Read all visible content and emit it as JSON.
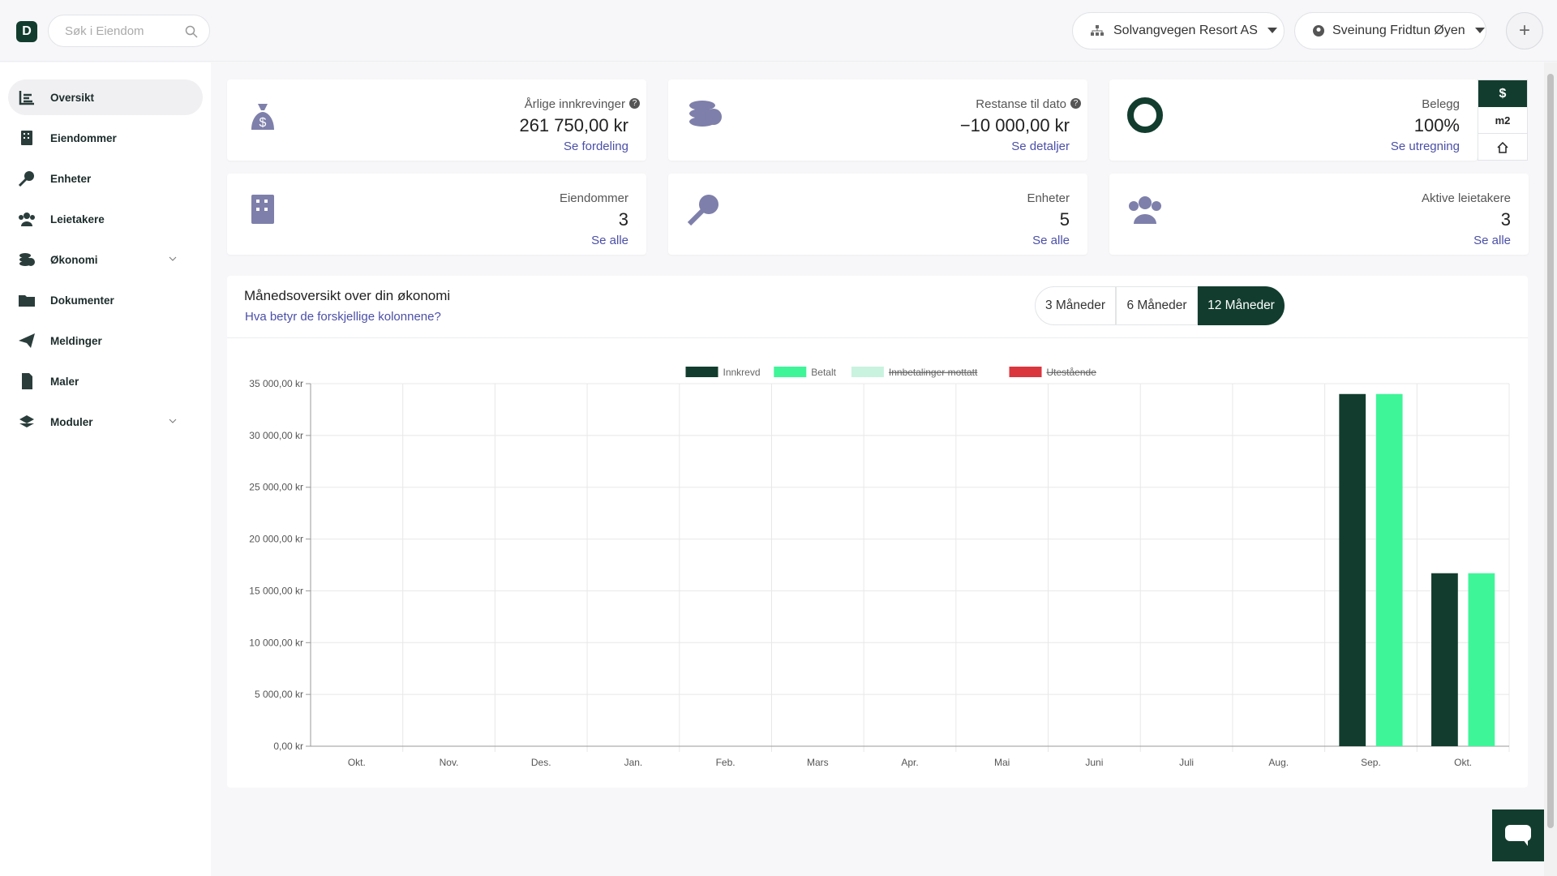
{
  "header": {
    "search_placeholder": "Søk i Eiendom",
    "company": "Solvangvegen Resort AS",
    "user": "Sveinung Fridtun Øyen"
  },
  "nav": [
    "Oversikt",
    "Eiendommer",
    "Enheter",
    "Leietakere",
    "Økonomi",
    "Dokumenter",
    "Meldinger",
    "Maler",
    "Moduler"
  ],
  "cards": [
    {
      "label": "Årlige innkrevinger",
      "value": "261 750,00 kr",
      "link": "Se fordeling"
    },
    {
      "label": "Restanse til dato",
      "value": "−10 000,00 kr",
      "link": "Se detaljer"
    },
    {
      "label": "Belegg",
      "value": "100%",
      "link": "Se utregning"
    },
    {
      "label": "Eiendommer",
      "value": "3",
      "link": "Se alle"
    },
    {
      "label": "Enheter",
      "value": "5",
      "link": "Se alle"
    },
    {
      "label": "Aktive leietakere",
      "value": "3",
      "link": "Se alle"
    }
  ],
  "belegg_toggle": [
    "$",
    "m2"
  ],
  "chart_panel": {
    "title": "Månedsoversikt over din økonomi",
    "help": "Hva betyr de forskjellige kolonnene?",
    "ranges": [
      "3 Måneder",
      "6 Måneder",
      "12 Måneder"
    ],
    "active_range": 2
  },
  "chart_data": {
    "type": "bar",
    "categories": [
      "Okt.",
      "Nov.",
      "Des.",
      "Jan.",
      "Feb.",
      "Mars",
      "Apr.",
      "Mai",
      "Juni",
      "Juli",
      "Aug.",
      "Sep.",
      "Okt."
    ],
    "series": [
      {
        "name": "Innkrevd",
        "color": "#123d2e",
        "hidden": false,
        "values": [
          0,
          0,
          0,
          0,
          0,
          0,
          0,
          0,
          0,
          0,
          0,
          34000,
          16700
        ]
      },
      {
        "name": "Betalt",
        "color": "#3ef598",
        "hidden": false,
        "values": [
          0,
          0,
          0,
          0,
          0,
          0,
          0,
          0,
          0,
          0,
          0,
          34000,
          16700
        ]
      },
      {
        "name": "Innbetalinger mottatt",
        "color": "#c9f3df",
        "hidden": true,
        "values": [
          0,
          0,
          0,
          0,
          0,
          0,
          0,
          0,
          0,
          0,
          0,
          0,
          0
        ]
      },
      {
        "name": "Utestående",
        "color": "#d9363e",
        "hidden": true,
        "values": [
          0,
          0,
          0,
          0,
          0,
          0,
          0,
          0,
          0,
          0,
          0,
          0,
          0
        ]
      }
    ],
    "ylim": [
      0,
      35000
    ],
    "yticks": [
      {
        "value": 0,
        "label": "0,00 kr"
      },
      {
        "value": 5000,
        "label": "5 000,00 kr"
      },
      {
        "value": 10000,
        "label": "10 000,00 kr"
      },
      {
        "value": 15000,
        "label": "15 000,00 kr"
      },
      {
        "value": 20000,
        "label": "20 000,00 kr"
      },
      {
        "value": 25000,
        "label": "25 000,00 kr"
      },
      {
        "value": 30000,
        "label": "30 000,00 kr"
      },
      {
        "value": 35000,
        "label": "35 000,00 kr"
      }
    ],
    "grid": true,
    "legend": "top"
  }
}
